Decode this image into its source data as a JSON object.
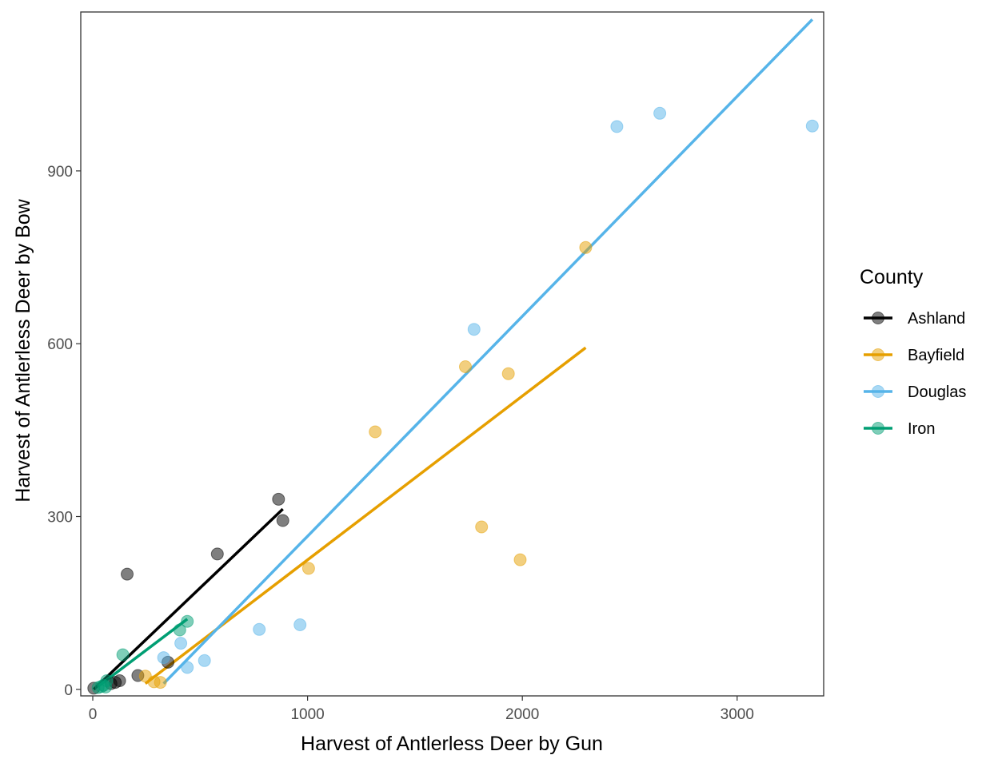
{
  "chart_data": {
    "type": "scatter",
    "title": "",
    "xlabel": "Harvest of Antlerless Deer by Gun",
    "ylabel": "Harvest of Antlerless Deer by Bow",
    "xlim": [
      -40,
      3410
    ],
    "ylim": [
      -12,
      1182
    ],
    "x_ticks": [
      0,
      1000,
      2000,
      3000
    ],
    "x_tick_labels": [
      "0",
      "1000",
      "2000",
      "3000"
    ],
    "y_ticks": [
      0,
      300,
      600,
      900
    ],
    "y_tick_labels": [
      "0",
      "300",
      "600",
      "900"
    ],
    "grid": false,
    "legend_position": "right",
    "legend_title": "County",
    "series": [
      {
        "name": "Ashland",
        "color": "#000000",
        "points": [
          [
            5,
            2
          ],
          [
            85,
            10
          ],
          [
            105,
            12
          ],
          [
            125,
            15
          ],
          [
            160,
            200
          ],
          [
            210,
            24
          ],
          [
            350,
            47
          ],
          [
            580,
            235
          ],
          [
            865,
            330
          ],
          [
            885,
            293
          ]
        ],
        "fit": [
          [
            5,
            0
          ],
          [
            885,
            313
          ]
        ]
      },
      {
        "name": "Bayfield",
        "color": "#E69F00",
        "points": [
          [
            245,
            23
          ],
          [
            285,
            13
          ],
          [
            315,
            12
          ],
          [
            1005,
            210
          ],
          [
            1315,
            447
          ],
          [
            1735,
            560
          ],
          [
            1810,
            282
          ],
          [
            1935,
            548
          ],
          [
            1990,
            225
          ],
          [
            2295,
            767
          ]
        ],
        "fit": [
          [
            245,
            10
          ],
          [
            2295,
            593
          ]
        ]
      },
      {
        "name": "Douglas",
        "color": "#56B4E9",
        "points": [
          [
            330,
            55
          ],
          [
            410,
            80
          ],
          [
            440,
            38
          ],
          [
            520,
            50
          ],
          [
            775,
            104
          ],
          [
            965,
            112
          ],
          [
            1775,
            625
          ],
          [
            2440,
            977
          ],
          [
            2640,
            1000
          ],
          [
            3350,
            978
          ]
        ],
        "fit": [
          [
            330,
            10
          ],
          [
            3350,
            1163
          ]
        ]
      },
      {
        "name": "Iron",
        "color": "#009E73",
        "points": [
          [
            25,
            3
          ],
          [
            40,
            5
          ],
          [
            50,
            7
          ],
          [
            60,
            4
          ],
          [
            65,
            15
          ],
          [
            140,
            60
          ],
          [
            405,
            103
          ],
          [
            440,
            118
          ]
        ],
        "fit": [
          [
            25,
            5
          ],
          [
            440,
            122
          ]
        ]
      }
    ]
  }
}
